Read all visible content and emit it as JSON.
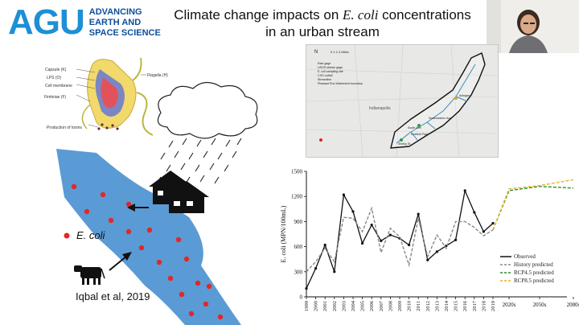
{
  "logo": {
    "mark": "AGU",
    "line1": "ADVANCING",
    "line2": "EARTH AND",
    "line3": "SPACE SCIENCE"
  },
  "title": {
    "line1_prefix": "Climate change impacts on ",
    "line1_italic": "E. coli",
    "line1_suffix": " concentrations",
    "line2": "in an urban stream"
  },
  "bacterium_labels": {
    "capsule": "Capsule (K)",
    "flagella": "Flagella (H)",
    "lps": "LPS (O)",
    "cell_membrane": "Cell membrane",
    "fimbriae": "Fimbriae (F)",
    "toxins": "Production of toxins"
  },
  "legend_ecoli": "E. coli",
  "credit": "Iqbal et al, 2019",
  "map": {
    "scale": "0 1 2 4 Miles",
    "north": "N",
    "city": "Indianapolis",
    "legend": [
      "Rain gage",
      "USGS stream gage",
      "E. coli sampling site",
      "CSO outfall",
      "Streamline",
      "Pleasant Run Watershed boundary"
    ],
    "places": [
      "Arlington",
      "Southeastern Ave",
      "South Arm",
      "Garfield Park",
      "Shelby St"
    ]
  },
  "chart_data": {
    "type": "line",
    "ylabel": "E. coli (MPN/100mL)",
    "xlabel": "",
    "ylim": [
      0,
      1500
    ],
    "yticks": [
      0,
      300,
      600,
      900,
      1200,
      1500
    ],
    "x_years": [
      "1999",
      "2000",
      "2001",
      "2002",
      "2003",
      "2004",
      "2005",
      "2006",
      "2007",
      "2008",
      "2009",
      "2010",
      "2011",
      "2012",
      "2013",
      "2014",
      "2015",
      "2016",
      "2017",
      "2018",
      "2019"
    ],
    "future_labels": [
      "2020s",
      "2050s",
      "2080s"
    ],
    "series": [
      {
        "name": "Observed",
        "color": "#111111",
        "style": "solid",
        "values": [
          100,
          340,
          620,
          300,
          1220,
          1020,
          640,
          860,
          670,
          740,
          700,
          620,
          990,
          440,
          540,
          610,
          680,
          1270,
          1010,
          780,
          880
        ]
      },
      {
        "name": "History predicted",
        "color": "#888888",
        "style": "dash",
        "values": [
          300,
          420,
          580,
          420,
          950,
          940,
          780,
          1060,
          530,
          820,
          720,
          380,
          940,
          480,
          740,
          580,
          900,
          900,
          830,
          730,
          800
        ]
      },
      {
        "name": "RCP4.5 predicted",
        "color": "#2e8b2e",
        "style": "dash",
        "x_future": [
          2019,
          2020,
          2050,
          2080
        ],
        "values": [
          800,
          1270,
          1320,
          1300
        ]
      },
      {
        "name": "RCP8.5 predicted",
        "color": "#e6b422",
        "style": "dash",
        "x_future": [
          2019,
          2020,
          2050,
          2080
        ],
        "values": [
          800,
          1290,
          1330,
          1400
        ]
      }
    ]
  }
}
